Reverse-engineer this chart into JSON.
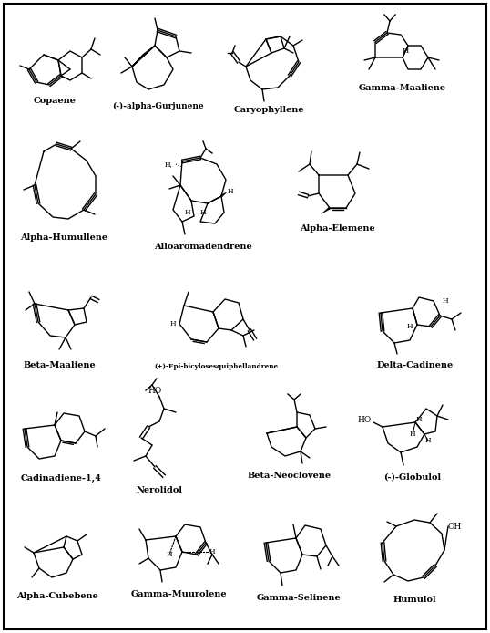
{
  "background_color": "#ffffff",
  "border_color": "#000000",
  "figsize": [
    5.38,
    6.94
  ],
  "dpi": 100,
  "label_fontsize": 7.0,
  "label_fontweight": "bold",
  "label_font": "DejaVu Serif",
  "molecules": [
    {
      "name": "Copaene",
      "col": 0,
      "row": 0
    },
    {
      "name": "(-)-alpha-Gurjunene",
      "col": 1,
      "row": 0
    },
    {
      "name": "Caryophyllene",
      "col": 2,
      "row": 0
    },
    {
      "name": "Gamma-Maaliene",
      "col": 3,
      "row": 0
    },
    {
      "name": "Alpha-Humullene",
      "col": 0,
      "row": 1
    },
    {
      "name": "Alloaromadendrene",
      "col": 1,
      "row": 1
    },
    {
      "name": "Alpha-Elemene",
      "col": 2,
      "row": 1
    },
    {
      "name": "Beta-Maaliene",
      "col": 0,
      "row": 2
    },
    {
      "name": "(+)-Epi-bicylosesquiphellandrene",
      "col": 1,
      "row": 2
    },
    {
      "name": "Delta-Cadinene",
      "col": 2,
      "row": 2
    },
    {
      "name": "Cadinadiene-1,4",
      "col": 0,
      "row": 3
    },
    {
      "name": "Nerolidol",
      "col": 1,
      "row": 3
    },
    {
      "name": "Beta-Neoclovene",
      "col": 2,
      "row": 3
    },
    {
      "name": "(-)-Globulol",
      "col": 3,
      "row": 3
    },
    {
      "name": "Alpha-Cubebene",
      "col": 0,
      "row": 4
    },
    {
      "name": "Gamma-Muurolene",
      "col": 1,
      "row": 4
    },
    {
      "name": "Gamma-Selinene",
      "col": 2,
      "row": 4
    },
    {
      "name": "Humulol",
      "col": 3,
      "row": 4
    }
  ]
}
